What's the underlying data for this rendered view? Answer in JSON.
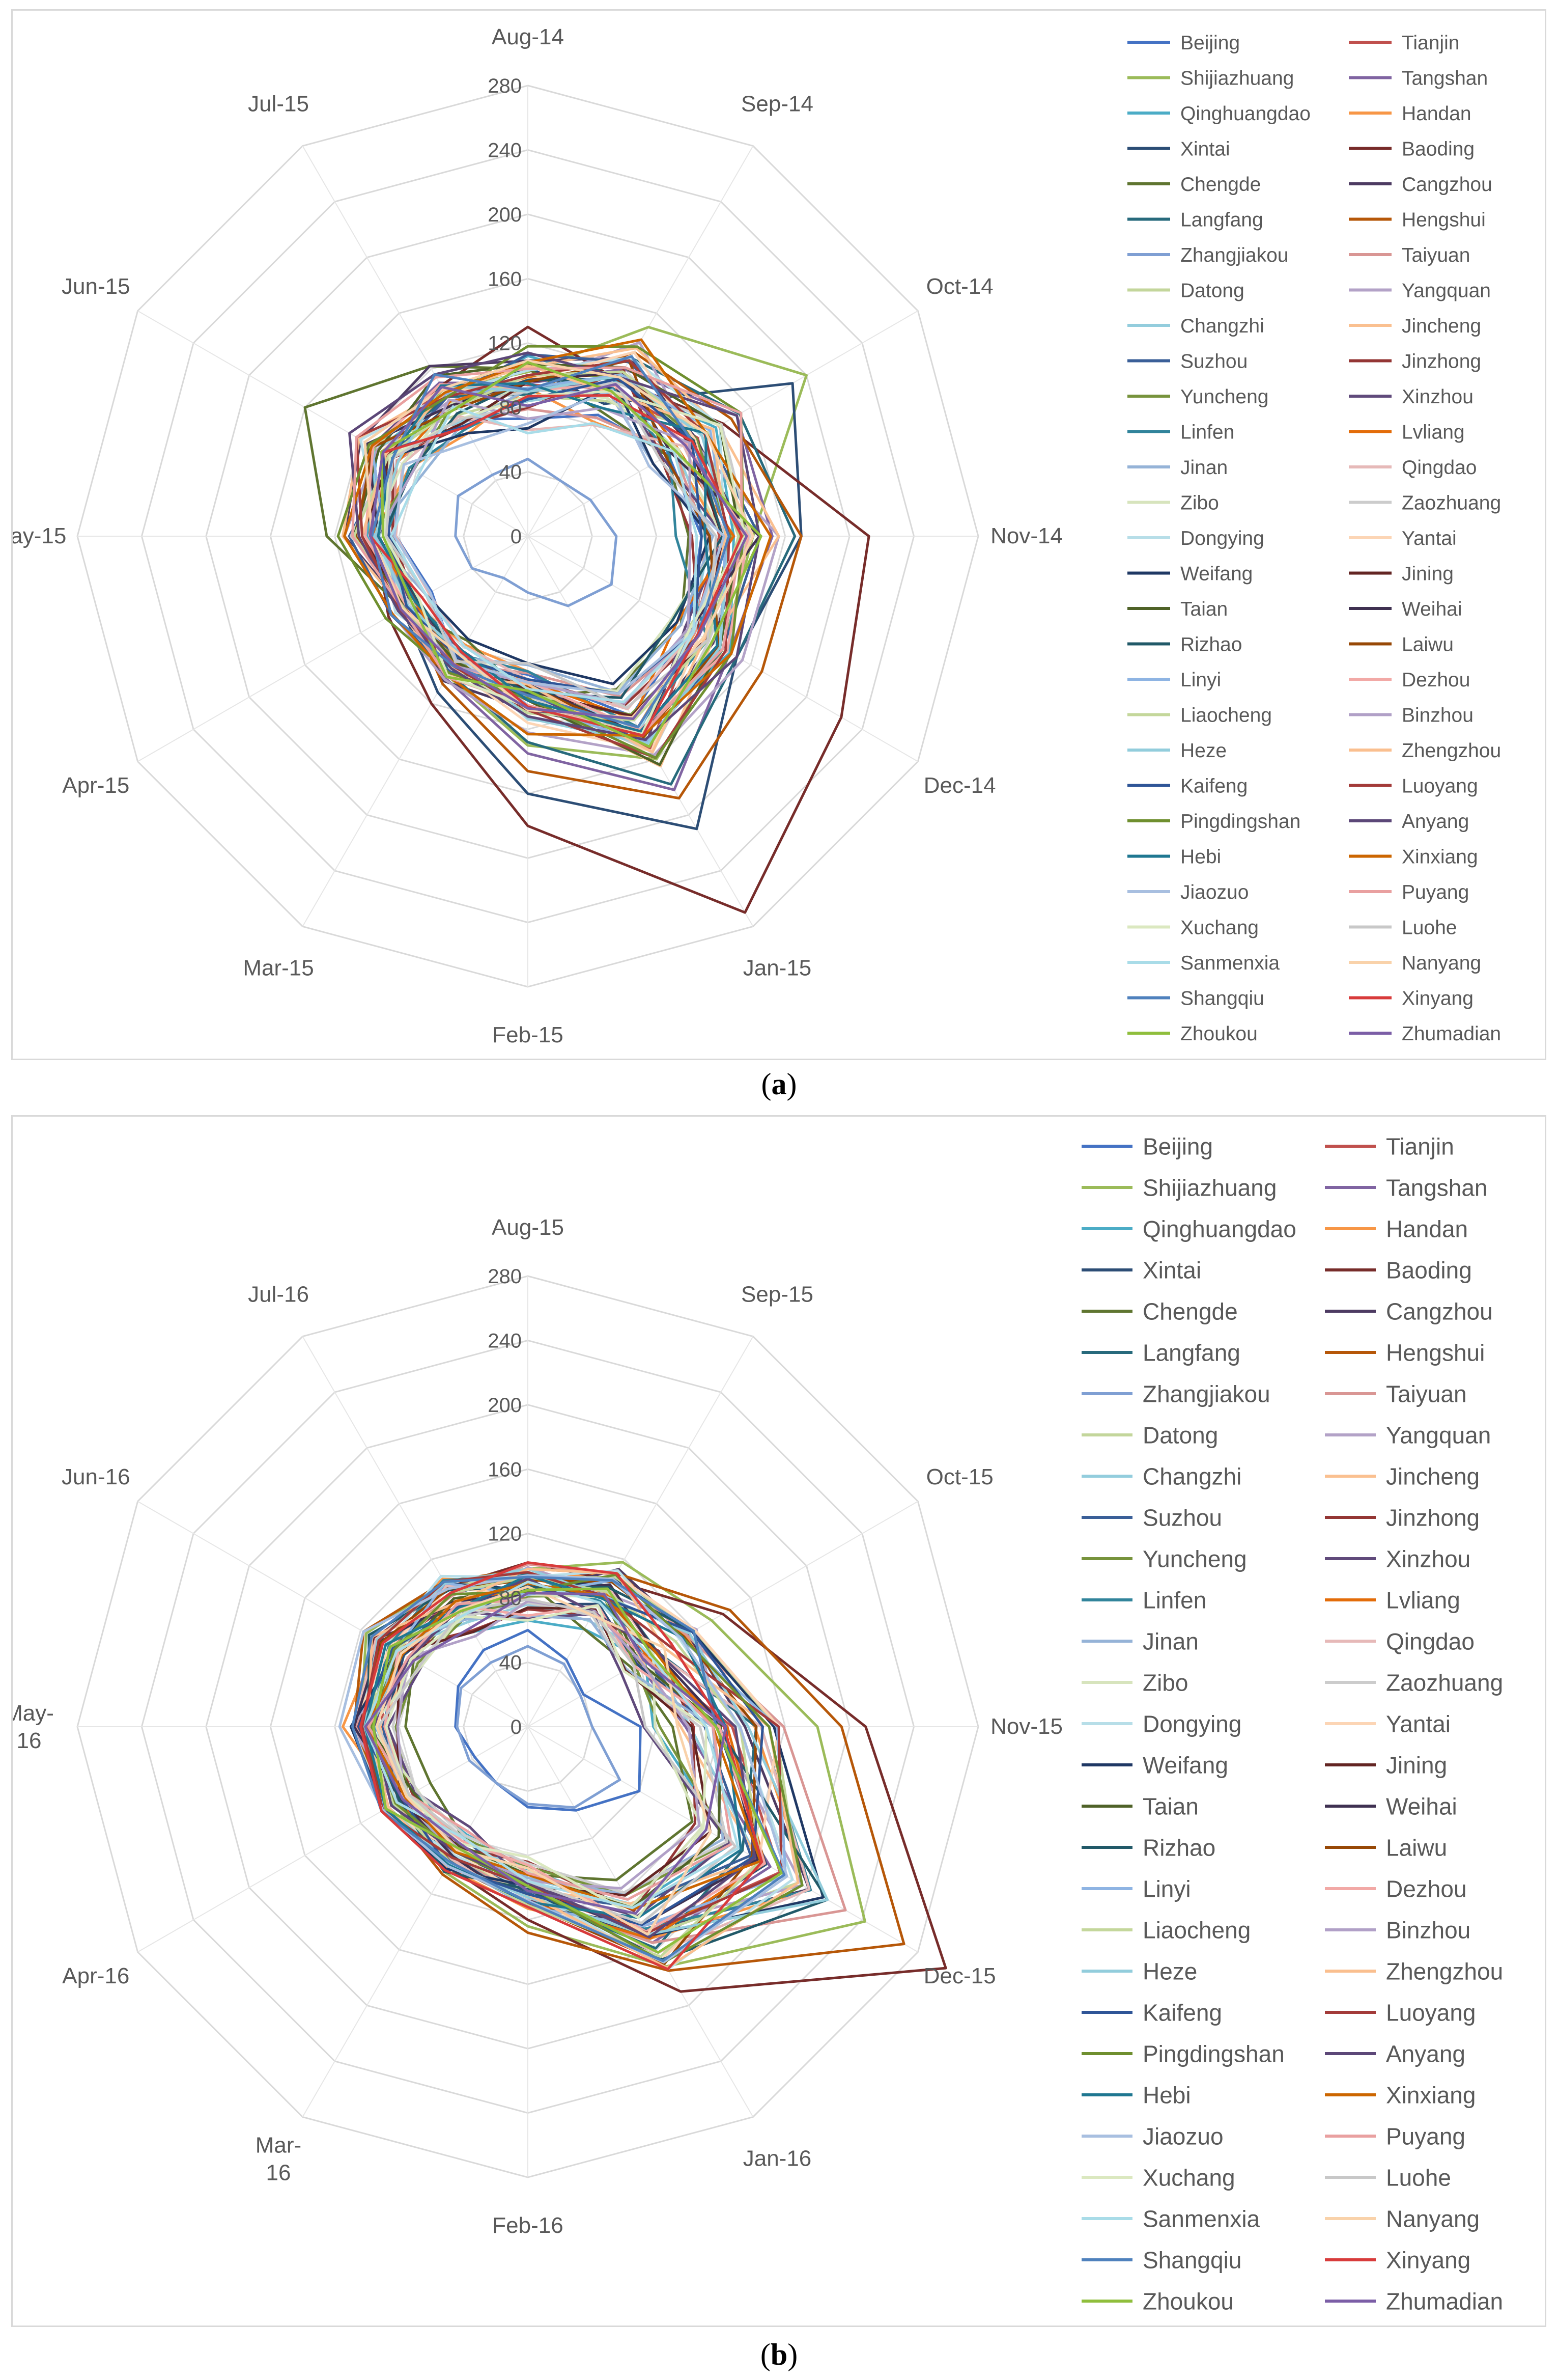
{
  "cities": [
    "Beijing",
    "Tianjin",
    "Shijiazhuang",
    "Tangshan",
    "Qinghuangdao",
    "Handan",
    "Xintai",
    "Baoding",
    "Chengde",
    "Cangzhou",
    "Langfang",
    "Hengshui",
    "Zhangjiakou",
    "Taiyuan",
    "Datong",
    "Yangquan",
    "Changzhi",
    "Jincheng",
    "Suzhou",
    "Jinzhong",
    "Yuncheng",
    "Xinzhou",
    "Linfen",
    "Lvliang",
    "Jinan",
    "Qingdao",
    "Zibo",
    "Zaozhuang",
    "Dongying",
    "Yantai",
    "Weifang",
    "Jining",
    "Taian",
    "Weihai",
    "Rizhao",
    "Laiwu",
    "Linyi",
    "Dezhou",
    "Liaocheng",
    "Binzhou",
    "Heze",
    "Zhengzhou",
    "Kaifeng",
    "Luoyang",
    "Pingdingshan",
    "Anyang",
    "Hebi",
    "Xinxiang",
    "Jiaozuo",
    "Puyang",
    "Xuchang",
    "Luohe",
    "Sanmenxia",
    "Nanyang",
    "Shangqiu",
    "Xinyang",
    "Zhoukou",
    "Zhumadian"
  ],
  "colors": [
    "#4472c4",
    "#c0504d",
    "#9bbb59",
    "#8064a2",
    "#4bacc6",
    "#f79646",
    "#2c4d75",
    "#772c2a",
    "#5f7530",
    "#4d3b62",
    "#276a7c",
    "#b65708",
    "#7f9fd3",
    "#d99694",
    "#c3d69b",
    "#b3a2c7",
    "#93cddd",
    "#fac090",
    "#3a5f98",
    "#943634",
    "#77933c",
    "#604a7b",
    "#31849b",
    "#e36c09",
    "#95b3d7",
    "#e6b9b8",
    "#d7e4bd",
    "#cccccc",
    "#b7dee8",
    "#fcd5b5",
    "#1f3864",
    "#632523",
    "#4f6228",
    "#3f3151",
    "#215968",
    "#974806",
    "#8eb4e3",
    "#f2a9a6",
    "#c4d79b",
    "#b1a0c7",
    "#92cddc",
    "#fabf8f",
    "#2f5597",
    "#a33b39",
    "#6f8f2f",
    "#5c4778",
    "#1f7791",
    "#cc6600",
    "#a8bfe0",
    "#e9a0a0",
    "#dbe8c0",
    "#c8c8c8",
    "#a9dce8",
    "#f9d2aa",
    "#4f81bd",
    "#d83b3b",
    "#8fbe3c",
    "#7b5ea6"
  ],
  "chart_data": [
    {
      "panel_label": "a",
      "type": "radar",
      "categories": [
        "Aug-14",
        "Sep-14",
        "Oct-14",
        "Nov-14",
        "Dec-14",
        "Jan-15",
        "Feb-15",
        "Mar-15",
        "Apr-15",
        "May-15",
        "Jun-15",
        "Jul-15"
      ],
      "tick_labels": [
        "0",
        "40",
        "80",
        "120",
        "160",
        "200",
        "240",
        "280"
      ],
      "ylim": [
        0,
        280
      ],
      "legend_position": "right",
      "approximate_profile": {
        "low": [
          62,
          72,
          70,
          82,
          92,
          100,
          72,
          70,
          65,
          72,
          70,
          60
        ],
        "high": [
          122,
          145,
          158,
          165,
          160,
          175,
          125,
          110,
          105,
          120,
          132,
          132
        ]
      },
      "highlighted_series": [
        {
          "name": "Baoding",
          "values": [
            130,
            112,
            140,
            212,
            225,
            270,
            180,
            120,
            100,
            95,
            100,
            108
          ]
        },
        {
          "name": "Xintai",
          "values": [
            105,
            95,
            190,
            170,
            150,
            210,
            160,
            112,
            90,
            92,
            100,
            95
          ]
        },
        {
          "name": "Shijiazhuang",
          "values": [
            102,
            150,
            200,
            140,
            140,
            160,
            130,
            100,
            88,
            98,
            110,
            105
          ]
        },
        {
          "name": "Chengde",
          "values": [
            104,
            90,
            100,
            100,
            110,
            110,
            100,
            75,
            90,
            125,
            160,
            122
          ]
        },
        {
          "name": "Zhangjiakou",
          "values": [
            48,
            40,
            45,
            55,
            60,
            50,
            35,
            30,
            40,
            45,
            50,
            44
          ]
        },
        {
          "name": "Langfang",
          "values": [
            88,
            128,
            152,
            166,
            150,
            178,
            128,
            98,
            80,
            90,
            104,
            100
          ]
        },
        {
          "name": "Tangshan",
          "values": [
            95,
            120,
            150,
            152,
            145,
            182,
            135,
            102,
            88,
            96,
            112,
            110
          ]
        },
        {
          "name": "Hengshui",
          "values": [
            90,
            132,
            146,
            170,
            168,
            188,
            146,
            106,
            86,
            94,
            104,
            102
          ]
        }
      ]
    },
    {
      "panel_label": "b",
      "type": "radar",
      "categories": [
        "Aug-15",
        "Sep-15",
        "Oct-15",
        "Nov-15",
        "Dec-15",
        "Jan-16",
        "Feb-16",
        "Mar-16",
        "Apr-16",
        "May-16",
        "Jun-16",
        "Jul-16"
      ],
      "category_display": [
        "Aug-15",
        "Sep-15",
        "Oct-15",
        "Nov-15",
        "Dec-15",
        "Jan-16",
        "Feb-16",
        "Mar-\n16",
        "Apr-16",
        "May-\n16",
        "Jun-16",
        "Jul-16"
      ],
      "tick_labels": [
        "0",
        "40",
        "80",
        "120",
        "160",
        "200",
        "240",
        "280"
      ],
      "ylim": [
        0,
        280
      ],
      "legend_position": "right",
      "approximate_profile": {
        "low": [
          62,
          68,
          60,
          65,
          110,
          112,
          80,
          70,
          75,
          78,
          72,
          62
        ],
        "high": [
          108,
          118,
          130,
          170,
          230,
          180,
          120,
          108,
          110,
          118,
          120,
          110
        ]
      },
      "highlighted_series": [
        {
          "name": "Baoding",
          "values": [
            102,
            105,
            140,
            210,
            300,
            190,
            120,
            100,
            95,
            105,
            110,
            100
          ]
        },
        {
          "name": "Hengshui",
          "values": [
            98,
            110,
            145,
            195,
            270,
            175,
            128,
            106,
            100,
            108,
            118,
            104
          ]
        },
        {
          "name": "Beijing",
          "values": [
            60,
            48,
            40,
            70,
            80,
            60,
            50,
            40,
            38,
            45,
            50,
            55
          ]
        },
        {
          "name": "Zhangjiakou",
          "values": [
            50,
            45,
            38,
            40,
            66,
            58,
            48,
            40,
            42,
            44,
            48,
            46
          ]
        },
        {
          "name": "Chengde",
          "values": [
            90,
            70,
            74,
            90,
            118,
            110,
            92,
            80,
            70,
            76,
            82,
            86
          ]
        },
        {
          "name": "Shijiazhuang",
          "values": [
            98,
            118,
            132,
            180,
            242,
            172,
            124,
            104,
            96,
            104,
            116,
            104
          ]
        }
      ]
    }
  ],
  "captions": {
    "a": "a",
    "b": "b"
  }
}
